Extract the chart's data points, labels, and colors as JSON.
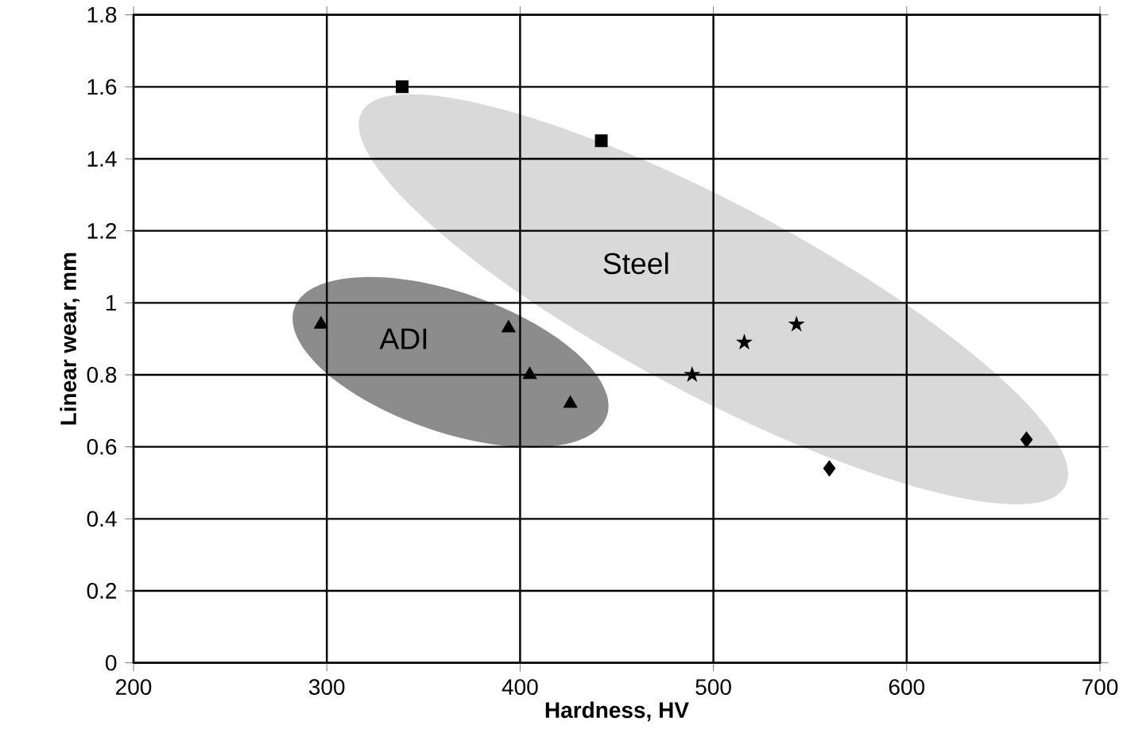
{
  "chart_data": {
    "type": "scatter",
    "xlabel": "Hardness, HV",
    "ylabel": "Linear wear, mm",
    "xlim": [
      200,
      700
    ],
    "xticks": [
      200,
      300,
      400,
      500,
      600,
      700
    ],
    "ylim": [
      0,
      1.8
    ],
    "yticks": [
      0,
      0.2,
      0.4,
      0.6,
      0.8,
      1,
      1.2,
      1.4,
      1.6,
      1.8
    ],
    "grid": true,
    "annotations": [
      "ADI",
      "Steel"
    ],
    "series": [
      {
        "color": "#000000",
        "marker": "square",
        "x": [
          339,
          442
        ],
        "values": [
          1.6,
          1.45
        ]
      },
      {
        "color": "#000000",
        "marker": "triangle",
        "x": [
          297,
          394,
          405,
          426
        ],
        "values": [
          0.94,
          0.93,
          0.8,
          0.72
        ]
      },
      {
        "color": "#000000",
        "marker": "star",
        "x": [
          489,
          516,
          543
        ],
        "values": [
          0.8,
          0.89,
          0.94
        ]
      },
      {
        "color": "#000000",
        "marker": "diamond",
        "x": [
          560,
          662
        ],
        "values": [
          0.54,
          0.62
        ]
      }
    ]
  }
}
